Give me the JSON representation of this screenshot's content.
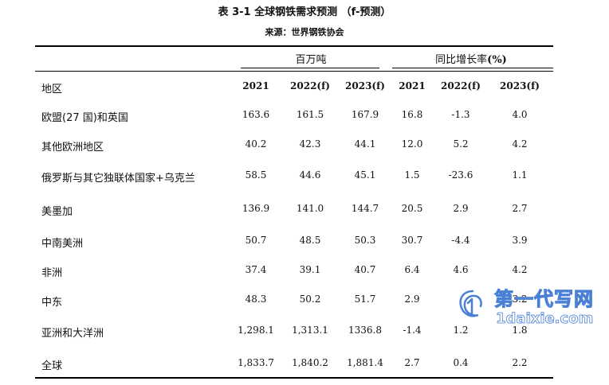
{
  "title": "表 3-1 全球钢铁需求预测 （f-预测）",
  "source": "来源：世界钢铁协会",
  "groups": {
    "volume": "百万吨",
    "growth": "同比增长率",
    "growth_unit": "(%)"
  },
  "header": {
    "region": "地区",
    "cols": [
      "2021",
      "2022(f)",
      "2023(f)",
      "2021",
      "2022(f)",
      "2023(f)"
    ]
  },
  "rows": [
    {
      "label": "欧盟(27 国)和英国",
      "values": [
        "163.6",
        "161.5",
        "167.9",
        "16.8",
        "-1.3",
        "4.0"
      ]
    },
    {
      "label": "其他欧洲地区",
      "values": [
        "40.2",
        "42.3",
        "44.1",
        "12.0",
        "5.2",
        "4.2"
      ]
    },
    {
      "label": "俄罗斯与其它独联体国家+乌克兰",
      "values": [
        "58.5",
        "44.6",
        "45.1",
        "1.5",
        "-23.6",
        "1.1"
      ]
    },
    {
      "label": "美墨加",
      "values": [
        "136.9",
        "141.0",
        "144.7",
        "20.5",
        "2.9",
        "2.7"
      ]
    },
    {
      "label": "中南美洲",
      "values": [
        "50.7",
        "48.5",
        "50.3",
        "30.7",
        "-4.4",
        "3.9"
      ]
    },
    {
      "label": "非洲",
      "values": [
        "37.4",
        "39.1",
        "40.7",
        "6.4",
        "4.6",
        "4.2"
      ]
    },
    {
      "label": "中东",
      "values": [
        "48.3",
        "50.2",
        "51.7",
        "2.9",
        "",
        "3.2"
      ]
    },
    {
      "label": "亚洲和大洋洲",
      "values": [
        "1,298.1",
        "1,313.1",
        "1336.8",
        "-1.4",
        "1.2",
        "1.8"
      ]
    },
    {
      "label": "全球",
      "values": [
        "1,833.7",
        "1,840.2",
        "1,881.4",
        "2.7",
        "0.4",
        "2.2"
      ]
    }
  ],
  "watermark": {
    "cn": "第一代写网",
    "en": "1daixie.com",
    "logo_icon": "swirl-logo-icon",
    "color": "#4a7fd6"
  }
}
